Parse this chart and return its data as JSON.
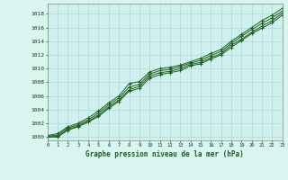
{
  "xlabel": "Graphe pression niveau de la mer (hPa)",
  "bg_color": "#d8f5f0",
  "plot_bg_color": "#cff0ee",
  "grid_color": "#b0d8d0",
  "line_color": "#1a5c1a",
  "xlim": [
    0,
    23
  ],
  "ylim": [
    999.5,
    1019.5
  ],
  "yticks": [
    1000,
    1002,
    1004,
    1006,
    1008,
    1010,
    1012,
    1014,
    1016,
    1018
  ],
  "xticks": [
    0,
    1,
    2,
    3,
    4,
    5,
    6,
    7,
    8,
    9,
    10,
    11,
    12,
    13,
    14,
    15,
    16,
    17,
    18,
    19,
    20,
    21,
    22,
    23
  ],
  "series": [
    [
      1000.2,
      1000.5,
      1001.5,
      1002.0,
      1002.8,
      1003.8,
      1005.0,
      1006.0,
      1007.8,
      1008.1,
      1009.5,
      1010.0,
      1010.2,
      1010.5,
      1011.0,
      1011.5,
      1012.2,
      1012.8,
      1014.0,
      1015.0,
      1016.0,
      1017.0,
      1017.8,
      1018.8
    ],
    [
      1000.1,
      1000.3,
      1001.3,
      1001.8,
      1002.5,
      1003.5,
      1004.7,
      1005.7,
      1007.3,
      1007.7,
      1009.2,
      1009.7,
      1009.9,
      1010.3,
      1010.8,
      1011.2,
      1011.9,
      1012.5,
      1013.7,
      1014.7,
      1015.7,
      1016.6,
      1017.4,
      1018.4
    ],
    [
      1000.0,
      1000.1,
      1001.1,
      1001.6,
      1002.3,
      1003.2,
      1004.4,
      1005.4,
      1006.9,
      1007.4,
      1008.9,
      1009.4,
      1009.6,
      1010.0,
      1010.6,
      1010.9,
      1011.6,
      1012.2,
      1013.4,
      1014.3,
      1015.3,
      1016.2,
      1017.0,
      1018.1
    ],
    [
      1000.0,
      1000.0,
      1001.0,
      1001.5,
      1002.2,
      1003.0,
      1004.2,
      1005.2,
      1006.7,
      1007.1,
      1008.6,
      1009.1,
      1009.4,
      1009.7,
      1010.4,
      1010.7,
      1011.4,
      1012.0,
      1013.1,
      1014.1,
      1015.1,
      1015.9,
      1016.7,
      1017.8
    ]
  ]
}
